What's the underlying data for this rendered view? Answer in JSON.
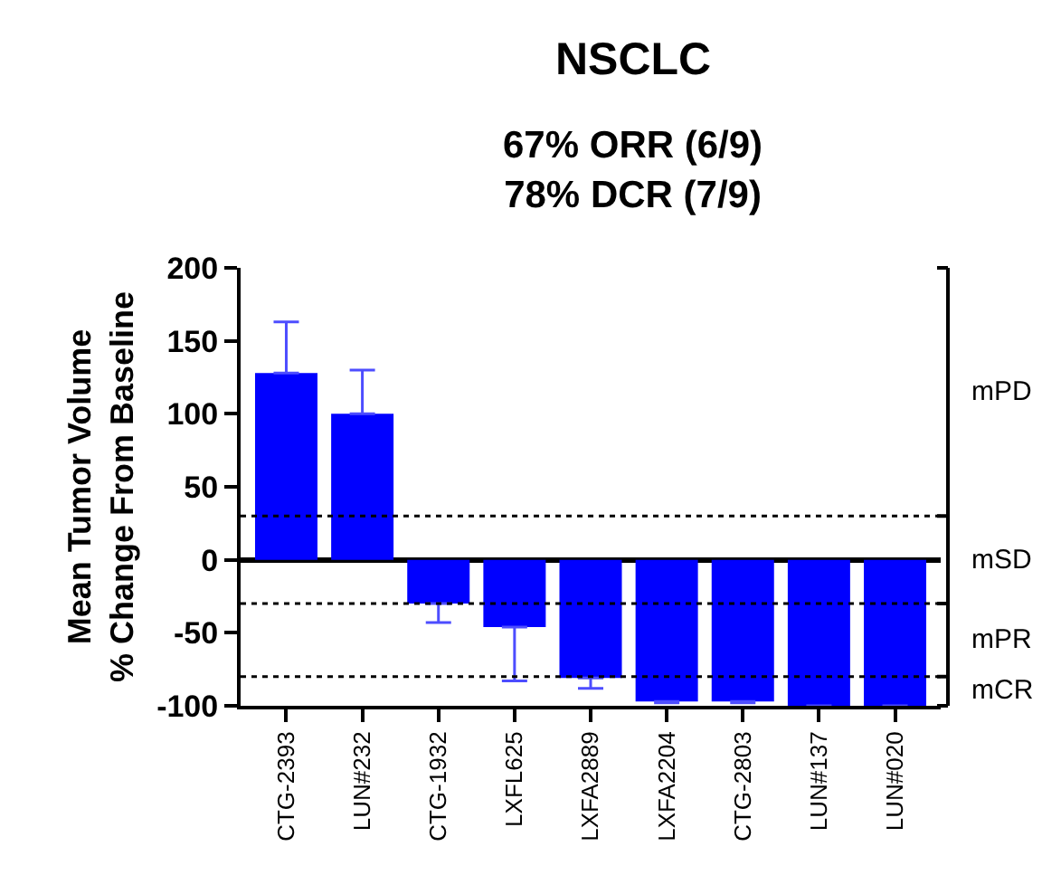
{
  "chart_data": {
    "type": "bar",
    "title": "NSCLC",
    "subtitle": "67% ORR (6/9)\n78% DCR (7/9)",
    "ylabel": "Mean Tumor Volume\n% Change From Baseline",
    "categories": [
      "CTG-2393",
      "LUN#232",
      "CTG-1932",
      "LXFL625",
      "LXFA2889",
      "LXFA2204",
      "CTG-2803",
      "LUN#137",
      "LUN#020"
    ],
    "values": [
      128,
      100,
      -30,
      -46,
      -81,
      -97,
      -97,
      -100,
      -100
    ],
    "errors": [
      [
        128,
        163
      ],
      [
        100,
        130
      ],
      [
        -43,
        -30
      ],
      [
        -83,
        -46
      ],
      [
        -88,
        -81
      ],
      [
        -98,
        -97
      ],
      [
        -98,
        -97
      ],
      null,
      null
    ],
    "color": "#0000ff",
    "ylim": [
      -100,
      200
    ],
    "yticks": [
      -100,
      -50,
      0,
      50,
      100,
      150,
      200
    ],
    "ref_lines": [
      {
        "axis": "y",
        "value": 30,
        "line_style": "dotted",
        "color": "#000000"
      },
      {
        "axis": "y",
        "value": -30,
        "line_style": "dotted",
        "color": "#000000"
      },
      {
        "axis": "y",
        "value": -80,
        "line_style": "dotted",
        "color": "#000000"
      }
    ],
    "annotations": [
      "mPD",
      "mSD",
      "mPR",
      "mCR"
    ]
  }
}
